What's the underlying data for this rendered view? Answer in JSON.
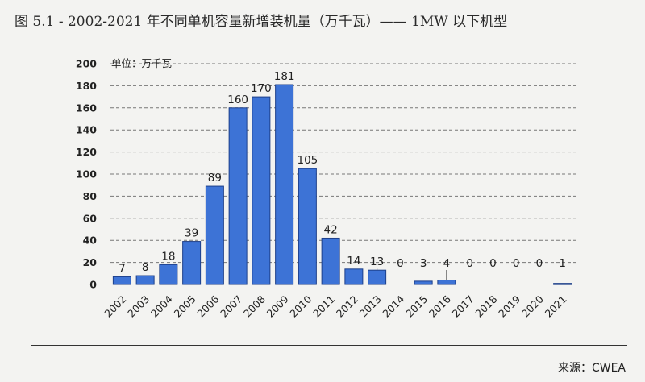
{
  "title": "图 5.1 - 2002-2021 年不同单机容量新增装机量（万千瓦）—— 1MW 以下机型",
  "source": "来源：CWEA",
  "chart_data": {
    "type": "bar",
    "unit_label": "单位：万千瓦",
    "categories": [
      "2002",
      "2003",
      "2004",
      "2005",
      "2006",
      "2007",
      "2008",
      "2009",
      "2010",
      "2011",
      "2012",
      "2013",
      "2014",
      "2015",
      "2016",
      "2017",
      "2018",
      "2019",
      "2020",
      "2021"
    ],
    "values": [
      7,
      8,
      18,
      39,
      89,
      160,
      170,
      181,
      105,
      42,
      14,
      13,
      0,
      3,
      4,
      0,
      0,
      0,
      0,
      1
    ],
    "ylim": [
      0,
      200
    ],
    "yticks": [
      0,
      20,
      40,
      60,
      80,
      100,
      120,
      140,
      160,
      180,
      200
    ],
    "grid": "dashed-horizontal",
    "legend": "none",
    "bar_color": "#3d73d6",
    "bar_edge": "#1d3f8a"
  }
}
